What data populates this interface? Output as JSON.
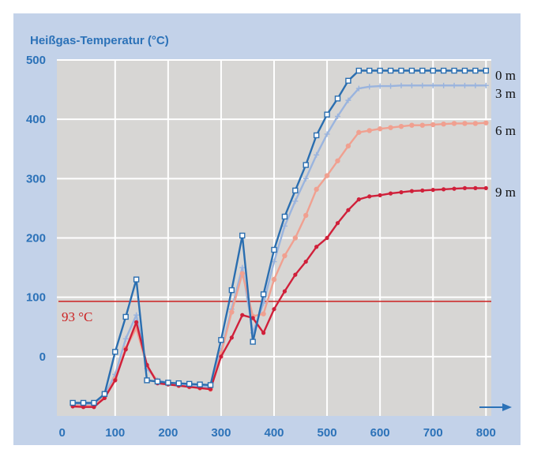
{
  "chart_data": {
    "type": "line",
    "title": "Heißgas-Temperatur (°C)",
    "xlabel": "",
    "ylabel": "Heißgas-Temperatur (°C)",
    "xlim": [
      -10,
      810
    ],
    "ylim": [
      -100,
      500
    ],
    "x_ticks": [
      0,
      100,
      200,
      300,
      400,
      500,
      600,
      700,
      800
    ],
    "y_ticks": [
      0,
      100,
      200,
      300,
      400,
      500
    ],
    "grid": true,
    "reference_line": {
      "value": 93,
      "label": "93 °C",
      "color": "#cc2020"
    },
    "series": [
      {
        "name": "0 m",
        "color": "#2a6eb0",
        "marker": "square",
        "x": [
          20,
          40,
          60,
          80,
          100,
          120,
          140,
          160,
          180,
          200,
          220,
          240,
          260,
          280,
          300,
          320,
          340,
          360,
          380,
          400,
          420,
          440,
          460,
          480,
          500,
          520,
          540,
          560,
          580,
          600,
          620,
          640,
          660,
          680,
          700,
          720,
          740,
          760,
          780,
          800
        ],
        "values": [
          -78,
          -78,
          -78,
          -63,
          8,
          67,
          130,
          -40,
          -42,
          -44,
          -45,
          -46,
          -47,
          -48,
          28,
          112,
          204,
          25,
          105,
          180,
          236,
          280,
          323,
          373,
          408,
          435,
          465,
          482,
          482,
          482,
          482,
          482,
          482,
          482,
          482,
          482,
          482,
          482,
          482,
          482
        ]
      },
      {
        "name": "3 m",
        "color": "#9ab4de",
        "marker": "plus",
        "x": [
          20,
          40,
          60,
          80,
          100,
          120,
          140,
          160,
          180,
          200,
          220,
          240,
          260,
          280,
          300,
          320,
          340,
          360,
          380,
          400,
          420,
          440,
          460,
          480,
          500,
          520,
          540,
          560,
          580,
          600,
          620,
          640,
          660,
          680,
          700,
          720,
          740,
          760,
          780,
          800
        ],
        "values": [
          -80,
          -80,
          -80,
          -66,
          -30,
          30,
          70,
          -20,
          -40,
          -44,
          -46,
          -48,
          -50,
          -52,
          10,
          80,
          150,
          40,
          90,
          160,
          220,
          262,
          300,
          340,
          375,
          405,
          432,
          452,
          455,
          456,
          456,
          457,
          457,
          457,
          457,
          457,
          457,
          457,
          457,
          457
        ]
      },
      {
        "name": "6 m",
        "color": "#f0a090",
        "marker": "asterisk",
        "x": [
          20,
          40,
          60,
          80,
          100,
          120,
          140,
          160,
          180,
          200,
          220,
          240,
          260,
          280,
          300,
          320,
          340,
          360,
          380,
          400,
          420,
          440,
          460,
          480,
          500,
          520,
          540,
          560,
          580,
          600,
          620,
          640,
          660,
          680,
          700,
          720,
          740,
          760,
          780,
          800
        ],
        "values": [
          -82,
          -83,
          -83,
          -68,
          -38,
          14,
          48,
          -16,
          -41,
          -46,
          -49,
          -51,
          -53,
          -55,
          5,
          75,
          140,
          68,
          72,
          130,
          170,
          200,
          238,
          282,
          305,
          330,
          355,
          378,
          381,
          384,
          386,
          388,
          390,
          390,
          391,
          392,
          393,
          393,
          393,
          394
        ]
      },
      {
        "name": "9 m",
        "color": "#d0203a",
        "marker": "dot",
        "x": [
          20,
          40,
          60,
          80,
          100,
          120,
          140,
          160,
          180,
          200,
          220,
          240,
          260,
          280,
          300,
          320,
          340,
          360,
          380,
          400,
          420,
          440,
          460,
          480,
          500,
          520,
          540,
          560,
          580,
          600,
          620,
          640,
          660,
          680,
          700,
          720,
          740,
          760,
          780,
          800
        ],
        "values": [
          -84,
          -85,
          -85,
          -70,
          -40,
          12,
          58,
          -14,
          -45,
          -47,
          -49,
          -51,
          -53,
          -55,
          0,
          32,
          70,
          65,
          40,
          80,
          110,
          138,
          160,
          185,
          200,
          225,
          247,
          265,
          270,
          272,
          275,
          277,
          279,
          280,
          281,
          282,
          283,
          284,
          284,
          284
        ]
      }
    ]
  }
}
